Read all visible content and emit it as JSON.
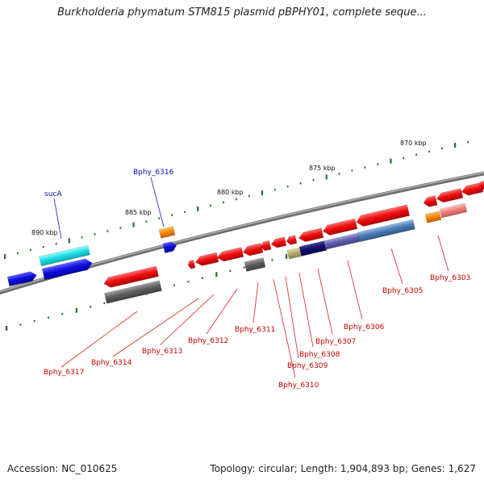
{
  "title": "Burkholderia phymatum STM815 plasmid pBPHY01, complete seque...",
  "footer": {
    "accession_label": "Accession: NC_010625",
    "stats": "Topology: circular; Length: 1,904,893 bp; Genes: 1,627"
  },
  "colors": {
    "blue": "#1010e0",
    "cyan": "#20e0e8",
    "red": "#ee1010",
    "orange": "#ff8800",
    "gray": "#606060",
    "navy": "#101070",
    "steel": "#4a7fb8",
    "slate": "#6060b0",
    "olive": "#b8b070",
    "salmon": "#f08080",
    "tick_green": "#207020",
    "backbone": "#808080"
  },
  "scale_labels": [
    "890 kbp",
    "885 kbp",
    "880 kbp",
    "875 kbp",
    "870 kbp"
  ],
  "gene_labels": [
    {
      "text": "sucA",
      "color": "blue"
    },
    {
      "text": "Bphy_6316",
      "color": "blue"
    },
    {
      "text": "Bphy_6317",
      "color": "red"
    },
    {
      "text": "Bphy_6314",
      "color": "red"
    },
    {
      "text": "Bphy_6313",
      "color": "red"
    },
    {
      "text": "Bphy_6312",
      "color": "red"
    },
    {
      "text": "Bphy_6311",
      "color": "red"
    },
    {
      "text": "Bphy_6310",
      "color": "red"
    },
    {
      "text": "Bphy_6309",
      "color": "red"
    },
    {
      "text": "Bphy_6308",
      "color": "red"
    },
    {
      "text": "Bphy_6307",
      "color": "red"
    },
    {
      "text": "Bphy_6306",
      "color": "red"
    },
    {
      "text": "Bphy_6305",
      "color": "red"
    },
    {
      "text": "Bphy_6303",
      "color": "red"
    }
  ]
}
